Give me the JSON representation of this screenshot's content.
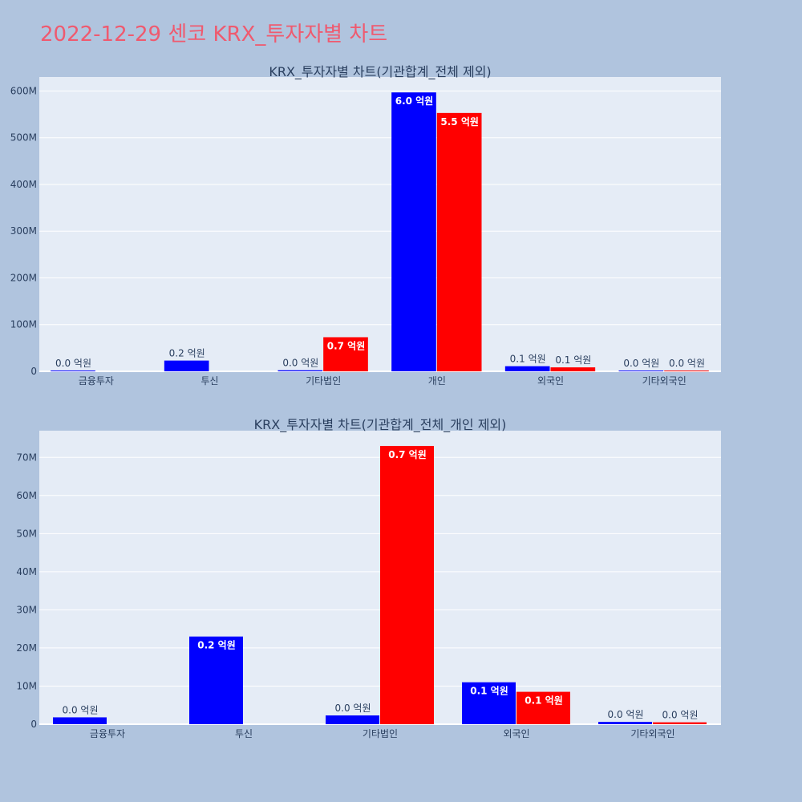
{
  "page_title": "2022-12-29 센코 KRX_투자자별 차트",
  "colors": {
    "buy": "#0000ff",
    "sell": "#ff0000",
    "plot_bg": "#e5ecf6",
    "page_bg": "#b0c4de",
    "title": "#ef5a6f"
  },
  "chart_data": [
    {
      "type": "bar",
      "title": "KRX_투자자별 차트(기관합계_전체 제외)",
      "categories": [
        "금융투자",
        "투신",
        "기타법인",
        "개인",
        "외국인",
        "기타외국인"
      ],
      "ylim": [
        0,
        630000000
      ],
      "yticks": [
        0,
        100000000,
        200000000,
        300000000,
        400000000,
        500000000,
        600000000
      ],
      "ytick_labels": [
        "0",
        "100M",
        "200M",
        "300M",
        "400M",
        "500M",
        "600M"
      ],
      "grid": true,
      "series": [
        {
          "color": "#0000ff",
          "values": [
            1800000,
            23000000,
            2300000,
            597000000,
            11000000,
            600000
          ],
          "labels": [
            "0.0 억원",
            "0.2 억원",
            "0.0 억원",
            "6.0 억원",
            "0.1 억원",
            "0.0 억원"
          ]
        },
        {
          "color": "#ff0000",
          "values": [
            null,
            null,
            73000000,
            553000000,
            8500000,
            500000
          ],
          "labels": [
            null,
            null,
            "0.7 억원",
            "5.5 억원",
            "0.1 억원",
            "0.0 억원"
          ]
        }
      ]
    },
    {
      "type": "bar",
      "title": "KRX_투자자별 차트(기관합계_전체_개인 제외)",
      "categories": [
        "금융투자",
        "투신",
        "기타법인",
        "외국인",
        "기타외국인"
      ],
      "ylim": [
        0,
        77000000
      ],
      "yticks": [
        0,
        10000000,
        20000000,
        30000000,
        40000000,
        50000000,
        60000000,
        70000000
      ],
      "ytick_labels": [
        "0",
        "10M",
        "20M",
        "30M",
        "40M",
        "50M",
        "60M",
        "70M"
      ],
      "grid": true,
      "series": [
        {
          "color": "#0000ff",
          "values": [
            1800000,
            23000000,
            2300000,
            11000000,
            600000
          ],
          "labels": [
            "0.0 억원",
            "0.2 억원",
            "0.0 억원",
            "0.1 억원",
            "0.0 억원"
          ]
        },
        {
          "color": "#ff0000",
          "values": [
            null,
            null,
            73000000,
            8500000,
            500000
          ],
          "labels": [
            null,
            null,
            "0.7 억원",
            "0.1 억원",
            "0.0 억원"
          ]
        }
      ]
    }
  ]
}
